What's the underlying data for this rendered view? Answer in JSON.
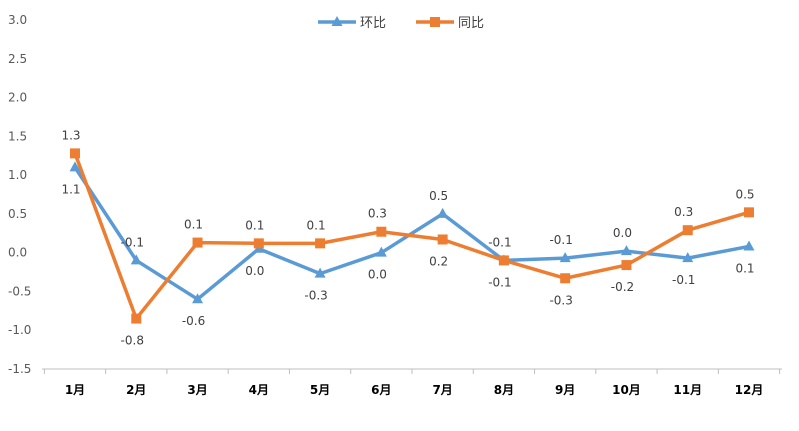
{
  "chart_data": {
    "type": "line",
    "title": "",
    "xlabel": "",
    "ylabel": "",
    "ylim": [
      -1.5,
      3.0
    ],
    "y_ticks": [
      "3.0",
      "2.5",
      "2.0",
      "1.5",
      "1.0",
      "0.5",
      "0.0",
      "-0.5",
      "-1.0",
      "-1.5"
    ],
    "y_tick_values": [
      3.0,
      2.5,
      2.0,
      1.5,
      1.0,
      0.5,
      0.0,
      -0.5,
      -1.0,
      -1.5
    ],
    "grid": false,
    "legend_position": "top-center",
    "categories": [
      "1月",
      "2月",
      "3月",
      "4月",
      "5月",
      "6月",
      "7月",
      "8月",
      "9月",
      "10月",
      "11月",
      "12月"
    ],
    "series": [
      {
        "name": "环比",
        "color": "#5B9BD5",
        "marker": "triangle",
        "values": [
          1.1,
          -0.1,
          -0.6,
          0.05,
          -0.27,
          0.0,
          0.5,
          -0.1,
          -0.07,
          0.02,
          -0.07,
          0.08
        ],
        "labels": [
          "1.1",
          "-0.1",
          "-0.6",
          "0.0",
          "-0.3",
          "0.0",
          "0.5",
          "-0.1",
          "-0.1",
          "0.0",
          "-0.1",
          "0.1"
        ],
        "label_position": [
          "below",
          "above",
          "below",
          "below",
          "below",
          "below",
          "above",
          "above",
          "above",
          "above",
          "below",
          "below"
        ]
      },
      {
        "name": "同比",
        "color": "#ED7D31",
        "marker": "square",
        "values": [
          1.28,
          -0.85,
          0.13,
          0.12,
          0.12,
          0.27,
          0.17,
          -0.1,
          -0.33,
          -0.16,
          0.29,
          0.52
        ],
        "labels": [
          "1.3",
          "-0.8",
          "0.1",
          "0.1",
          "0.1",
          "0.3",
          "0.2",
          "-0.1",
          "-0.3",
          "-0.2",
          "0.3",
          "0.5"
        ],
        "label_position": [
          "above",
          "below",
          "above",
          "above",
          "above",
          "above",
          "below",
          "below",
          "below",
          "below",
          "above",
          "above"
        ]
      }
    ]
  }
}
